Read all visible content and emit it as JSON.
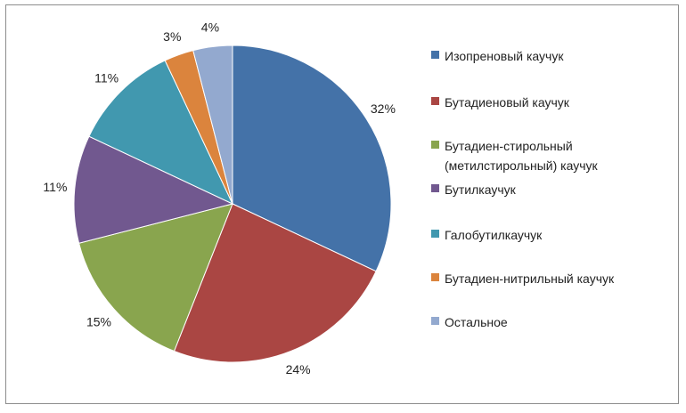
{
  "chart_data": {
    "type": "pie",
    "slices": [
      {
        "label": "Изопреновый каучук",
        "value": 32,
        "display": "32%",
        "color": "#4472A8"
      },
      {
        "label": "Бутадиеновый каучук",
        "value": 24,
        "display": "24%",
        "color": "#AA4643"
      },
      {
        "label": "Бутадиен-стирольный (метилстирольный) каучук",
        "value": 15,
        "display": "15%",
        "color": "#89A54E"
      },
      {
        "label": "Бутилкаучук",
        "value": 11,
        "display": "11%",
        "color": "#71588F"
      },
      {
        "label": "Галобутилкаучук",
        "value": 11,
        "display": "11%",
        "color": "#4198AF"
      },
      {
        "label": "Бутадиен-нитрильный каучук",
        "value": 3,
        "display": "3%",
        "color": "#DB843D"
      },
      {
        "label": "Остальное",
        "value": 4,
        "display": "4%",
        "color": "#93A9CF"
      }
    ],
    "legend_placement": "right",
    "start_angle": "12 o'clock",
    "direction": "clockwise"
  },
  "legend": {
    "items": [
      {
        "label": "Изопреновый каучук"
      },
      {
        "label": "Бутадиеновый каучук"
      },
      {
        "label": "Бутадиен-стирольный\n(метилстирольный) каучук"
      },
      {
        "label": "Бутилкаучук"
      },
      {
        "label": "Галобутилкаучук"
      },
      {
        "label": "Бутадиен-нитрильный каучук"
      },
      {
        "label": "Остальное"
      }
    ]
  }
}
